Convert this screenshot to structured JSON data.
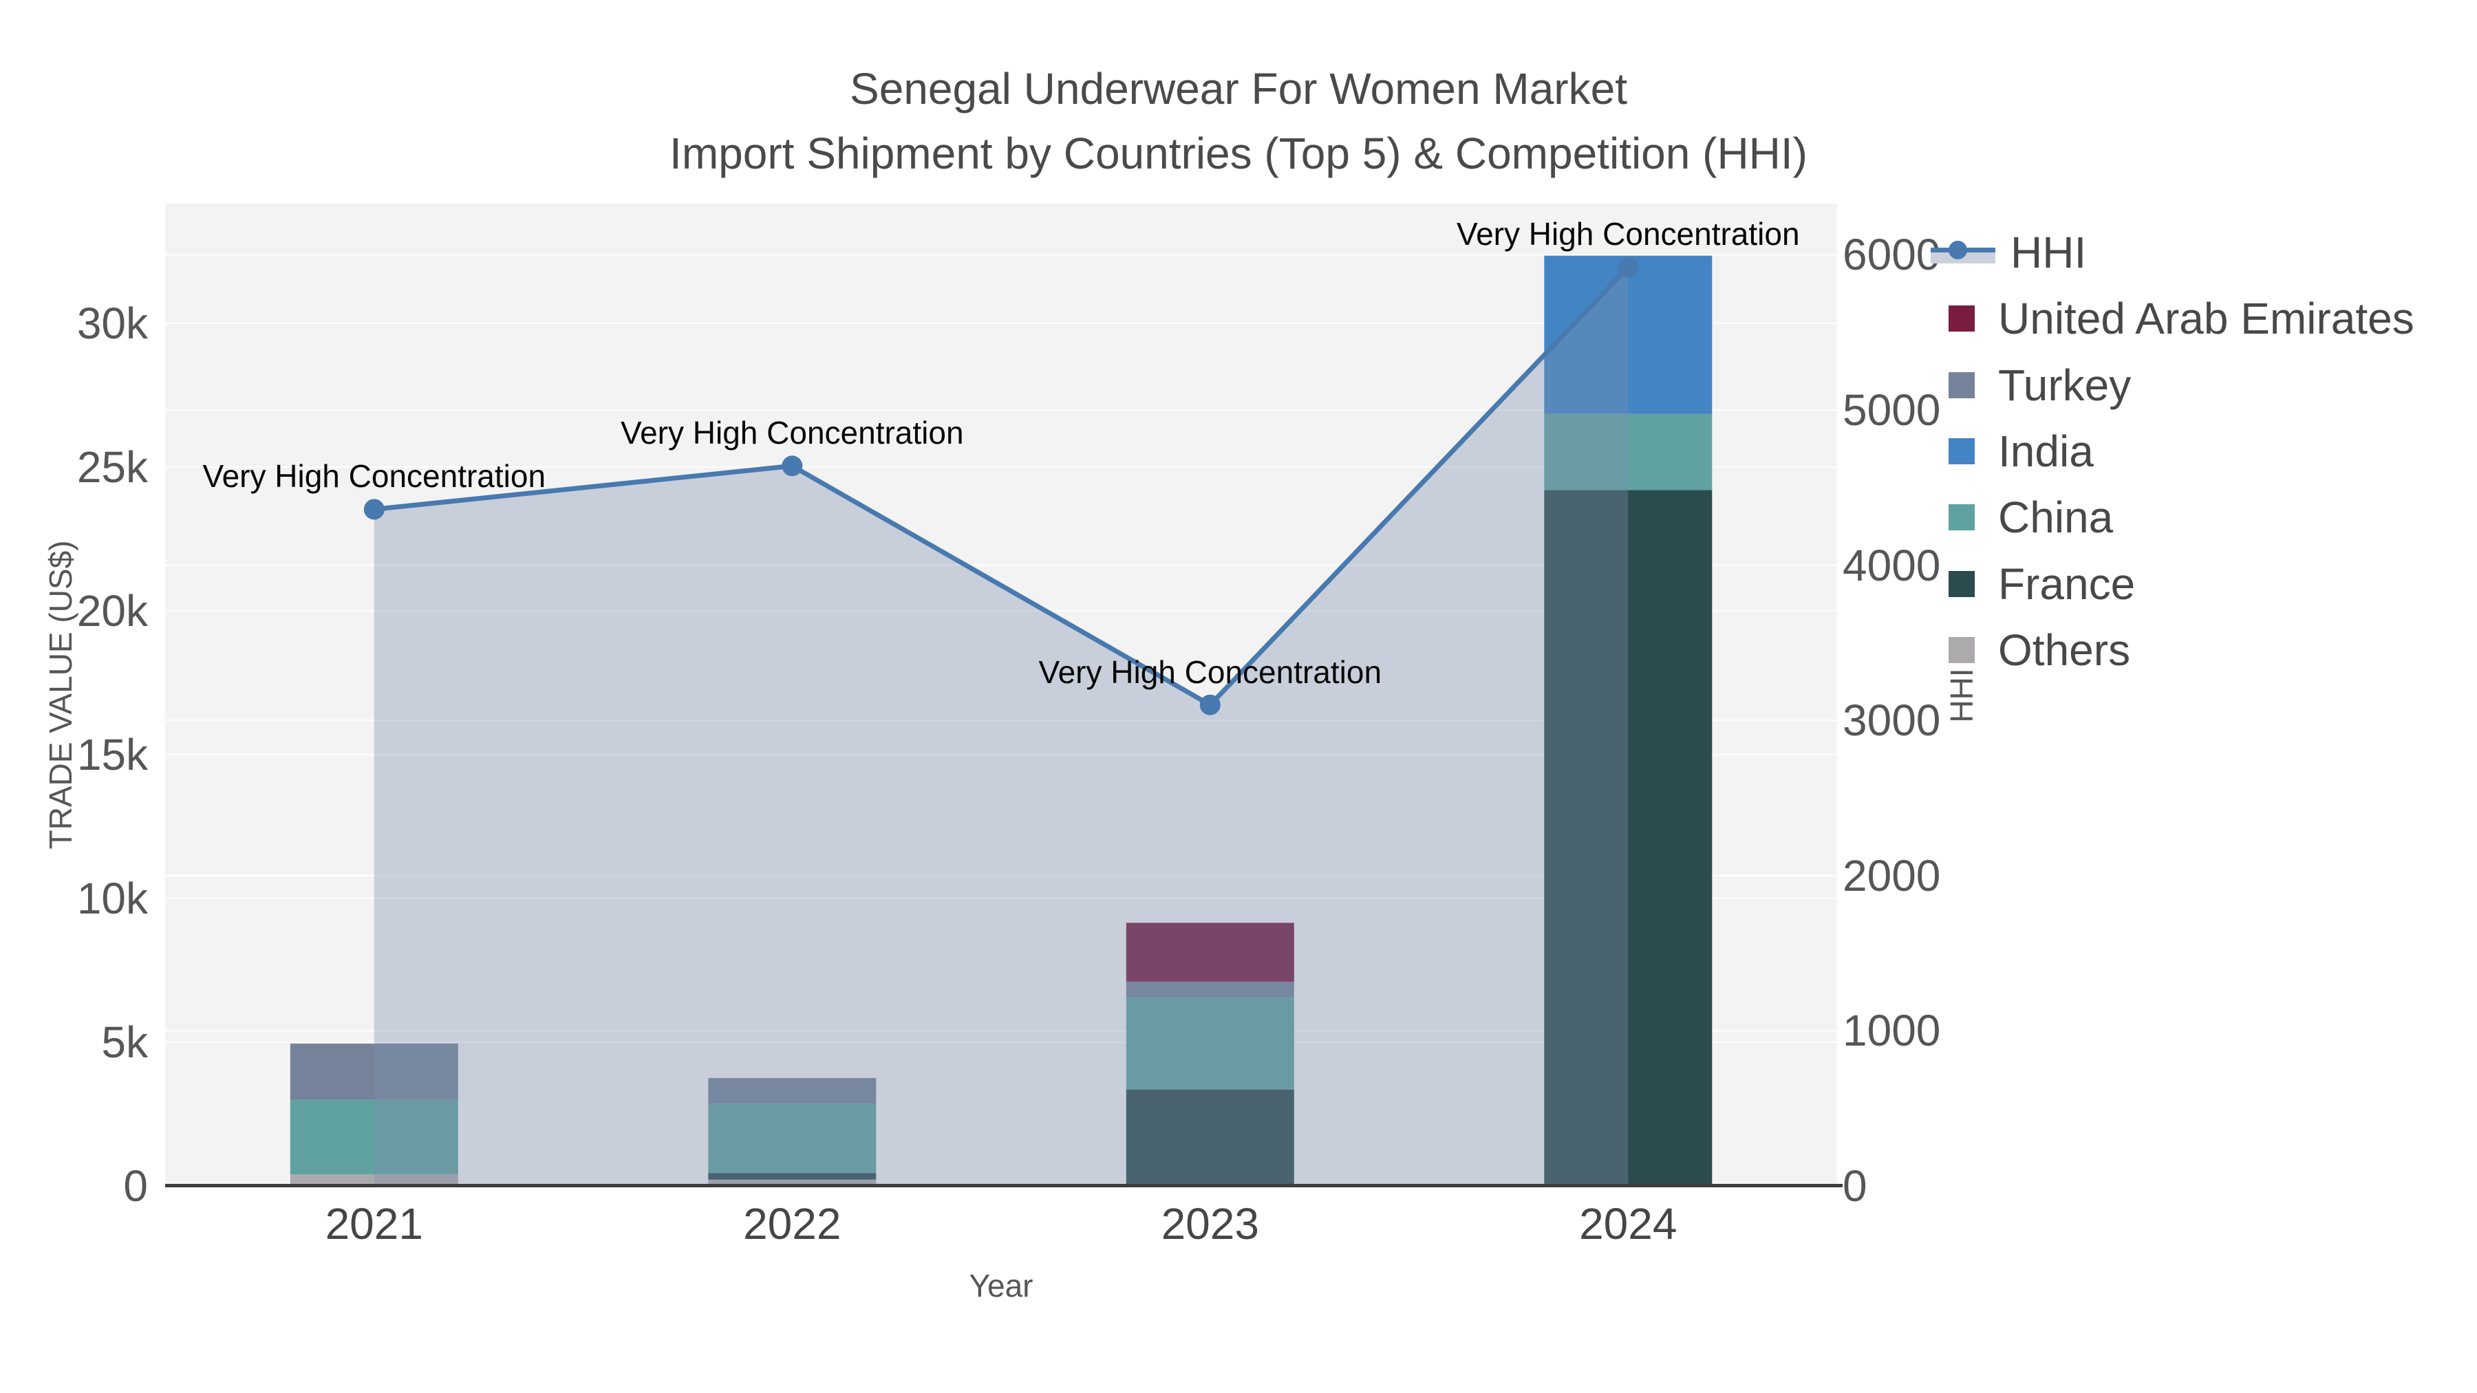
{
  "title": {
    "line1": "Senegal Underwear For Women Market",
    "line2": "Import Shipment by Countries (Top 5) & Competition (HHI)"
  },
  "chart_data": {
    "type": "bar",
    "subtype": "stacked-bars-with-line-overlay",
    "categories": [
      "2021",
      "2022",
      "2023",
      "2024"
    ],
    "xlabel": "Year",
    "left_axis": {
      "label": "TRADE VALUE (US$)",
      "tick_values": [
        0,
        5000,
        10000,
        15000,
        20000,
        25000,
        30000
      ],
      "tick_labels": [
        "0",
        "5k",
        "10k",
        "15k",
        "20k",
        "25k",
        "30k"
      ],
      "range_max": 34160
    },
    "right_axis": {
      "label": "HHI",
      "tick_values": [
        0,
        1000,
        2000,
        3000,
        4000,
        5000,
        6000
      ],
      "tick_labels": [
        "0",
        "1000",
        "2000",
        "3000",
        "4000",
        "5000",
        "6000"
      ],
      "range_max": 6330
    },
    "bar_series": [
      {
        "name": "United Arab Emirates",
        "color": "#7a1c40",
        "values": [
          0,
          0,
          2050,
          0
        ]
      },
      {
        "name": "Turkey",
        "color": "#75839a",
        "values": [
          1950,
          900,
          550,
          0
        ]
      },
      {
        "name": "India",
        "color": "#4384c4",
        "values": [
          0,
          0,
          0,
          5500
        ]
      },
      {
        "name": "China",
        "color": "#60a2a0",
        "values": [
          2600,
          2400,
          3200,
          2650
        ]
      },
      {
        "name": "France",
        "color": "#2c4b4e",
        "values": [
          0,
          230,
          3350,
          24200
        ]
      },
      {
        "name": "Others",
        "color": "#acaaac",
        "values": [
          400,
          220,
          0,
          0
        ]
      }
    ],
    "stack_order_note": "stacked bottom-to-top as Others, France, China, India, Turkey, United Arab Emirates",
    "hhi_series": {
      "name": "HHI",
      "color": "#4879af",
      "fill_color": "rgba(125,143,172,0.36)",
      "values": [
        4360,
        4640,
        3100,
        5920
      ],
      "annotation_text": "Very High Concentration",
      "annotated_points": [
        "2021",
        "2022",
        "2023",
        "2024"
      ]
    },
    "grid": "on",
    "legend_position": "right"
  },
  "style": {
    "plot_bg": "#f3f3f4",
    "grid_color": "#ffffff",
    "axisline_color": "#3d3d3d"
  }
}
